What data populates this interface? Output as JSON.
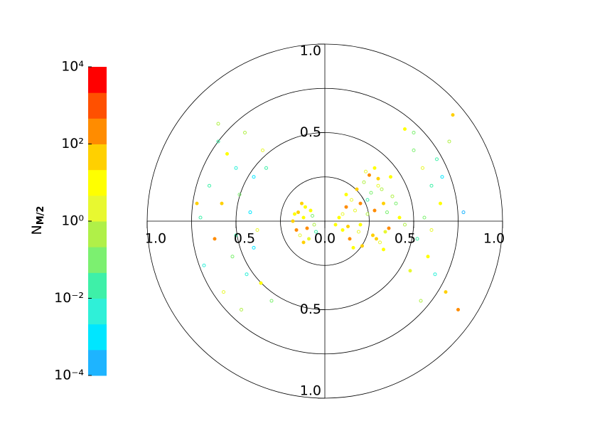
{
  "chart_data": {
    "type": "polar-scatter",
    "xlim": [
      -1,
      1
    ],
    "ylim": [
      -1,
      1
    ],
    "xticks": [
      {
        "value": -1,
        "label": "1.0"
      },
      {
        "value": -0.5,
        "label": "0.5"
      },
      {
        "value": 0,
        "label": "0.0"
      },
      {
        "value": 0.5,
        "label": "0.5"
      },
      {
        "value": 1,
        "label": "1.0"
      }
    ],
    "yticks": [
      {
        "value": 1,
        "label": "1.0"
      },
      {
        "value": 0.5,
        "label": "0.5"
      },
      {
        "value": -0.5,
        "label": "0.5"
      },
      {
        "value": -1,
        "label": "1.0"
      }
    ],
    "rings": [
      0.25,
      0.5,
      0.75,
      1
    ],
    "colorbar_label": "N",
    "colorbar_label_sub": "M/2",
    "clim": [
      -4,
      4
    ],
    "cticks": [
      {
        "value": 4,
        "label": "10⁴"
      },
      {
        "value": 2,
        "label": "10²"
      },
      {
        "value": 0,
        "label": "10⁰"
      },
      {
        "value": -2,
        "label": "10⁻²"
      },
      {
        "value": -4,
        "label": "10⁻⁴"
      }
    ],
    "colormap": [
      "#1eb4ff",
      "#00e6ff",
      "#2ff0d8",
      "#3ef0a8",
      "#7cf070",
      "#b0f048",
      "#e8f830",
      "#ffff00",
      "#ffd000",
      "#ff8c00",
      "#ff5000",
      "#ff0000"
    ],
    "x": [
      0.08,
      0.12,
      0.15,
      0.18,
      0.22,
      0.25,
      0.28,
      0.3,
      0.33,
      0.35,
      0.1,
      0.14,
      0.2,
      0.24,
      0.27,
      0.31,
      0.36,
      0.4,
      0.12,
      0.17,
      0.21,
      0.26,
      0.3,
      0.34,
      0.38,
      0.42,
      0.16,
      0.2,
      0.23,
      0.29,
      0.32,
      0.37,
      0.06,
      0.1,
      0.13,
      0.19,
      0.24,
      0.28,
      0.33,
      0.45,
      -0.15,
      -0.12,
      -0.1,
      -0.08,
      -0.14,
      -0.18,
      -0.06,
      -0.11,
      -0.16,
      -0.09,
      -0.13,
      -0.07,
      -0.17,
      -0.12,
      -0.05,
      -0.6,
      -0.55,
      -0.5,
      -0.45,
      -0.4,
      -0.35,
      -0.65,
      -0.58,
      -0.48,
      -0.42,
      -0.38,
      -0.7,
      -0.62,
      -0.52,
      -0.44,
      -0.36,
      -0.3,
      -0.68,
      -0.57,
      -0.47,
      -0.4,
      -0.33,
      -0.72,
      -0.6,
      -0.5,
      0.5,
      0.55,
      0.6,
      0.65,
      0.7,
      0.52,
      0.58,
      0.62,
      0.68,
      0.75,
      0.5,
      0.56,
      0.6,
      0.66,
      0.72,
      0.54,
      0.63,
      0.48,
      0.45,
      0.78
    ],
    "y": [
      0.02,
      0.08,
      0.12,
      0.18,
      0.22,
      0.26,
      0.3,
      0.2,
      0.1,
      0.05,
      -0.05,
      -0.1,
      -0.02,
      0.04,
      -0.08,
      -0.12,
      -0.04,
      0.1,
      0.15,
      0.06,
      -0.14,
      0.16,
      0.24,
      -0.06,
      0.14,
      0.02,
      -0.15,
      0.1,
      0.28,
      -0.1,
      0.18,
      0.25,
      -0.02,
      0.04,
      -0.03,
      -0.06,
      0.12,
      0.06,
      -0.16,
      -0.02,
      0.05,
      0.02,
      -0.04,
      0.06,
      -0.08,
      0,
      -0.02,
      0.08,
      -0.05,
      -0.1,
      0.1,
      0.03,
      0.04,
      -0.12,
      -0.06,
      0.45,
      0.38,
      0.3,
      0.5,
      0.25,
      0.4,
      0.2,
      0.1,
      0.15,
      0.05,
      -0.05,
      0.02,
      -0.1,
      -0.2,
      -0.3,
      -0.35,
      -0.45,
      -0.25,
      -0.4,
      -0.5,
      -0.15,
      0.3,
      0.1,
      0.55,
      -0.08,
      0.4,
      0.3,
      0.2,
      0.1,
      0.45,
      -0.1,
      -0.2,
      -0.3,
      -0.4,
      -0.5,
      0.5,
      0.02,
      -0.05,
      0.25,
      0.6,
      -0.45,
      0.35,
      -0.28,
      0.52,
      0.05
    ],
    "c": [
      1,
      2,
      0.5,
      1.5,
      -0.5,
      2.5,
      1,
      0,
      1.8,
      -1,
      0.8,
      2,
      1.2,
      -0.3,
      1.6,
      0.4,
      2.2,
      -1.2,
      1,
      0.2,
      1.4,
      -0.8,
      1.8,
      0.6,
      -0.4,
      1.1,
      0.9,
      2.4,
      0.3,
      1.7,
      -0.6,
      0.7,
      1.3,
      0.1,
      1.9,
      0.5,
      -1.5,
      2.1,
      1,
      -0.2,
      1.5,
      0.8,
      2,
      1.2,
      0.3,
      1.8,
      -0.5,
      1,
      2.2,
      0.6,
      1.4,
      -1,
      0.9,
      1.6,
      -2,
      -1.5,
      1,
      -2.5,
      -0.5,
      -3,
      0.5,
      -2,
      1.5,
      -1,
      -2.8,
      0,
      -1.8,
      2,
      -0.8,
      -2.2,
      1.2,
      -1.2,
      -2.6,
      0.3,
      -0.3,
      -3.2,
      -1.6,
      1.8,
      -0.6,
      -2,
      -1,
      0.5,
      -2,
      1,
      -0.5,
      -1.5,
      0.8,
      -2.4,
      1.4,
      2,
      -0.8,
      -1.2,
      0.2,
      -2.8,
      1.6,
      -0.2,
      -1.8,
      0.6,
      1.2,
      -3.5
    ]
  }
}
